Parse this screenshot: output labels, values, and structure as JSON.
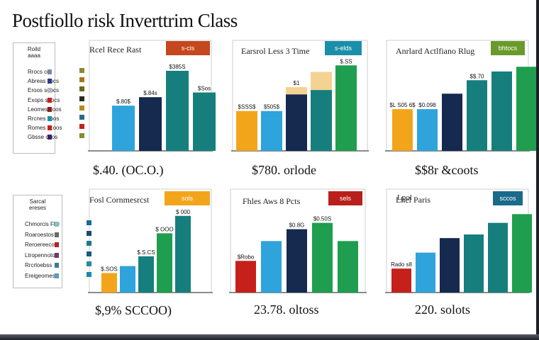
{
  "page_title": "Postfiollo risk Inverttrim Class",
  "colors": {
    "yellow": "#f2a51b",
    "sky": "#2ea3dc",
    "navy": "#16294f",
    "teal": "#167f7d",
    "green": "#1f9e4f",
    "red": "#c5201b",
    "olive": "#6a9a2b",
    "tan": "#f3d292"
  },
  "chart_data": [
    {
      "type": "bar",
      "title": "Rcel  Rece Rast",
      "tab_label": "s-cis",
      "tab_color": "#c5471d",
      "categories": [
        "b1",
        "b2",
        "b3",
        "b4"
      ],
      "values": [
        48,
        57,
        85,
        62
      ],
      "bar_colors": [
        "#2ea3dc",
        "#16294f",
        "#167f7d",
        "#167f7d"
      ],
      "bar_labels": [
        "$.80$",
        "$.84s",
        "$385S",
        "$Sos"
      ],
      "ylim": [
        0,
        100
      ],
      "footer": "$.40. (OC.O.)",
      "legend": {
        "header": [
          "Roild",
          "aaaa"
        ],
        "items": [
          {
            "label": "Rrocs cor",
            "color": "#7b86a8"
          },
          {
            "label": "Abreas cocs",
            "color": "#2b3a8a"
          },
          {
            "label": "Eroos soocs",
            "color": "#b8b8c4"
          },
          {
            "label": "Exops soocs",
            "color": "#c5201b"
          },
          {
            "label": "Leomes coos",
            "color": "#8a1c1c"
          },
          {
            "label": "Rrcnes coos",
            "color": "#1a8fa8"
          },
          {
            "label": "Romes ccoos",
            "color": "#c5201b"
          },
          {
            "label": "Gbsse coos",
            "color": "#3b1f6b"
          }
        ],
        "side_swatches": [
          "#8a8a30",
          "#a8781b",
          "#6a6a1b",
          "#2b2b1b",
          "#b88a1b",
          "#2a6a8a",
          "#c5201b",
          "#8a8a30"
        ]
      }
    },
    {
      "type": "bar",
      "title": "Earsrol  Less 3 Time",
      "tab_label": "s-elds",
      "tab_color": "#1a8fa8",
      "categories": [
        "b1",
        "b2",
        "b3",
        "b4",
        "b5"
      ],
      "values": [
        55,
        55,
        78,
        84,
        118
      ],
      "bar_colors": [
        "#f2a51b",
        "#2ea3dc",
        "#16294f",
        "#167f7d",
        "#1f9e4f"
      ],
      "highlight_stack": [
        0,
        0,
        10,
        25,
        0
      ],
      "bar_labels": [
        "$SSS$",
        "$505$",
        "$1",
        "",
        "$.SS"
      ],
      "ylim": [
        0,
        130
      ],
      "footer": "$780. orlode"
    },
    {
      "type": "bar",
      "title": "Anrlard  Actlfiano Rlug",
      "tab_label": "bhtocs",
      "tab_color": "#6a9a2b",
      "categories": [
        "b1",
        "b2",
        "b3",
        "b4",
        "b5",
        "b6"
      ],
      "values": [
        62,
        62,
        85,
        105,
        118,
        125
      ],
      "bar_colors": [
        "#f2a51b",
        "#2ea3dc",
        "#16294f",
        "#167f7d",
        "#167f7d",
        "#1f9e4f"
      ],
      "bar_labels": [
        "$L S05  6$",
        "$0.098",
        "",
        "$$.70",
        "",
        ""
      ],
      "ylim": [
        0,
        140
      ],
      "footer": "$$8r &coots"
    },
    {
      "type": "bar",
      "title": "Fosl  Cornmesrcst",
      "tab_label": "sols",
      "tab_color": "#f2a51b",
      "categories": [
        "b1",
        "b2",
        "b3",
        "b4",
        "b5"
      ],
      "values": [
        28,
        38,
        52,
        85,
        110
      ],
      "bar_colors": [
        "#f2a51b",
        "#2ea3dc",
        "#167f7d",
        "#1f9e4f",
        "#167f7d"
      ],
      "bar_labels": [
        "$.SOS",
        "",
        "$.S.CS",
        "$ OOO",
        "$ 000"
      ],
      "ylim": [
        0,
        125
      ],
      "footer": "$,9% SCCOO)",
      "legend": {
        "header": [
          "Sarcal",
          "ereses"
        ],
        "items": [
          {
            "label": "Chmorcis FlO",
            "color": "#7fc4c4"
          },
          {
            "label": "Roaroestos",
            "color": "#6a6a6a"
          },
          {
            "label": "Reroereecos",
            "color": "#b82020"
          },
          {
            "label": "Ltropennotos",
            "color": "#6a3a6a"
          },
          {
            "label": "Rrcrloebss",
            "color": "#3a7a9a"
          },
          {
            "label": "Ereigeomes",
            "color": "#5a9ac4"
          }
        ],
        "side_swatches": [
          "#1a6a9a",
          "#1a4a6a",
          "#1a7a8a",
          "#1a5a7a",
          "#2a8a9a",
          "#1a8aa8"
        ]
      }
    },
    {
      "type": "bar",
      "title": "Fhles  Aws 8 Pcts",
      "tab_label": "sels",
      "tab_color": "#b8201b",
      "categories": [
        "b1",
        "b2",
        "b3",
        "b4",
        "b5",
        "b6"
      ],
      "values": [
        40,
        65,
        80,
        88,
        65,
        0
      ],
      "bar_colors": [
        "#c5201b",
        "#2ea3dc",
        "#16294f",
        "#1f9e4f",
        "#1f9e4f",
        "#ffffff"
      ],
      "bar_labels": [
        "$Robo",
        "",
        "$0.8G",
        "$0.50S",
        "",
        ""
      ],
      "ylim": [
        0,
        110
      ],
      "footer": "23.78. oltoss"
    },
    {
      "type": "bar",
      "title": "Lhel Paris",
      "tab_label": "sccos",
      "tab_color": "#1a6a8a",
      "categories": [
        "b1",
        "b2",
        "b3",
        "b4",
        "b5",
        "b6"
      ],
      "values": [
        33,
        55,
        75,
        80,
        96,
        108
      ],
      "bar_colors": [
        "#c5201b",
        "#2ea3dc",
        "#16294f",
        "#167f7d",
        "#167f7d",
        "#1f9e4f"
      ],
      "bar_labels": [
        "Rado s8",
        "",
        "",
        "",
        "",
        ""
      ],
      "ylim": [
        0,
        120
      ],
      "side_label": "Lpol",
      "footer": "220. solots"
    }
  ]
}
